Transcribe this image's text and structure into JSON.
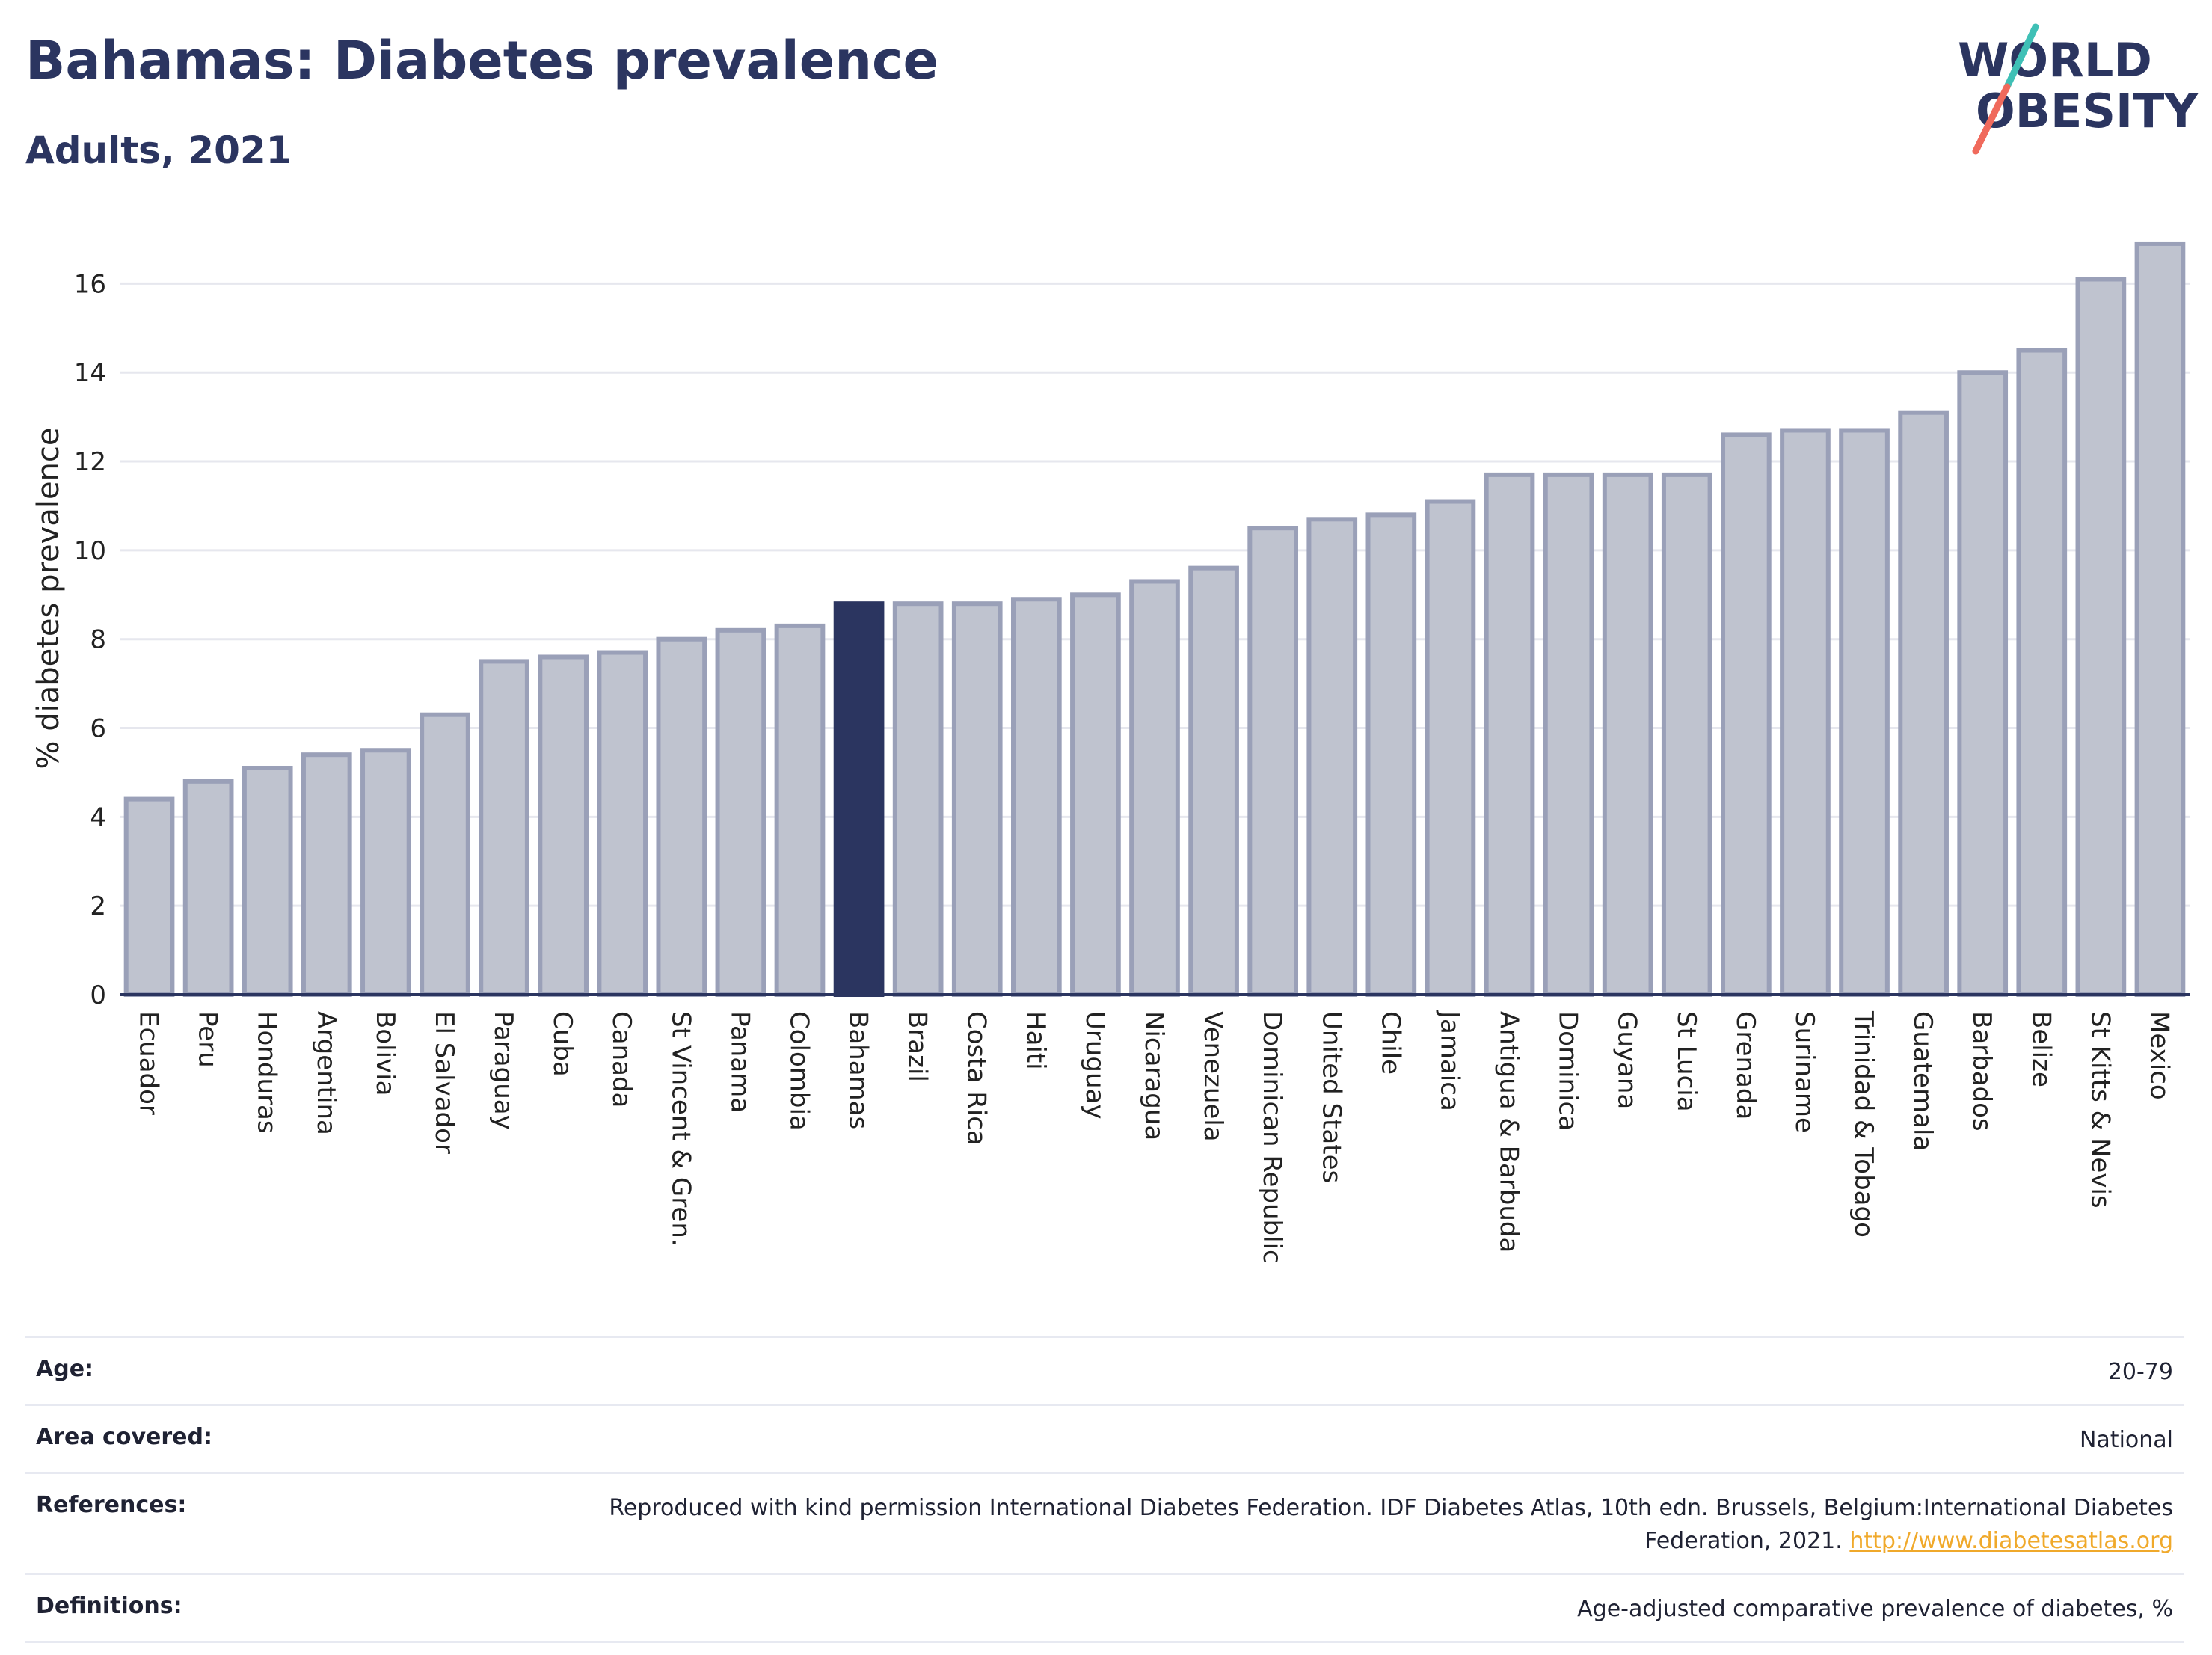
{
  "header": {
    "title": "Bahamas: Diabetes prevalence",
    "subtitle": "Adults, 2021"
  },
  "logo": {
    "line1": "WORLD",
    "line2": "OBESITY",
    "icon": "world-obesity-logo"
  },
  "chart_data": {
    "type": "bar",
    "title": "Bahamas: Diabetes prevalence",
    "subtitle": "Adults, 2021",
    "xlabel": "",
    "ylabel": "% diabetes prevalence",
    "ylim": [
      0,
      17
    ],
    "yticks": [
      0,
      2,
      4,
      6,
      8,
      10,
      12,
      14,
      16
    ],
    "grid": true,
    "highlight": "Bahamas",
    "colors": {
      "bar": "#bfc3cf",
      "bar_edge": "#9aa0b8",
      "highlight": "#2b3560",
      "grid": "#e6e7ee",
      "axis": "#2b3560"
    },
    "categories": [
      "Ecuador",
      "Peru",
      "Honduras",
      "Argentina",
      "Bolivia",
      "El Salvador",
      "Paraguay",
      "Cuba",
      "Canada",
      "St Vincent & Gren.",
      "Panama",
      "Colombia",
      "Bahamas",
      "Brazil",
      "Costa Rica",
      "Haiti",
      "Uruguay",
      "Nicaragua",
      "Venezuela",
      "Dominican Republic",
      "United States",
      "Chile",
      "Jamaica",
      "Antigua & Barbuda",
      "Dominica",
      "Guyana",
      "St Lucia",
      "Grenada",
      "Suriname",
      "Trinidad & Tobago",
      "Guatemala",
      "Barbados",
      "Belize",
      "St Kitts & Nevis",
      "Mexico"
    ],
    "values": [
      4.4,
      4.8,
      5.1,
      5.4,
      5.5,
      6.3,
      7.5,
      7.6,
      7.7,
      8.0,
      8.2,
      8.3,
      8.8,
      8.8,
      8.8,
      8.9,
      9.0,
      9.3,
      9.6,
      10.5,
      10.7,
      10.8,
      11.1,
      11.7,
      11.7,
      11.7,
      11.7,
      12.6,
      12.7,
      12.7,
      13.1,
      14.0,
      14.5,
      16.1,
      16.9
    ]
  },
  "meta": {
    "rows": [
      {
        "key": "Age:",
        "value": "20-79"
      },
      {
        "key": "Area covered:",
        "value": "National"
      },
      {
        "key": "References:",
        "value": "Reproduced with kind permission International Diabetes Federation.  IDF Diabetes Atlas, 10th edn. Brussels, Belgium:International Diabetes Federation, 2021.",
        "link": "http://www.diabetesatlas.org"
      },
      {
        "key": "Definitions:",
        "value": "Age-adjusted comparative prevalence of diabetes, %"
      }
    ]
  }
}
